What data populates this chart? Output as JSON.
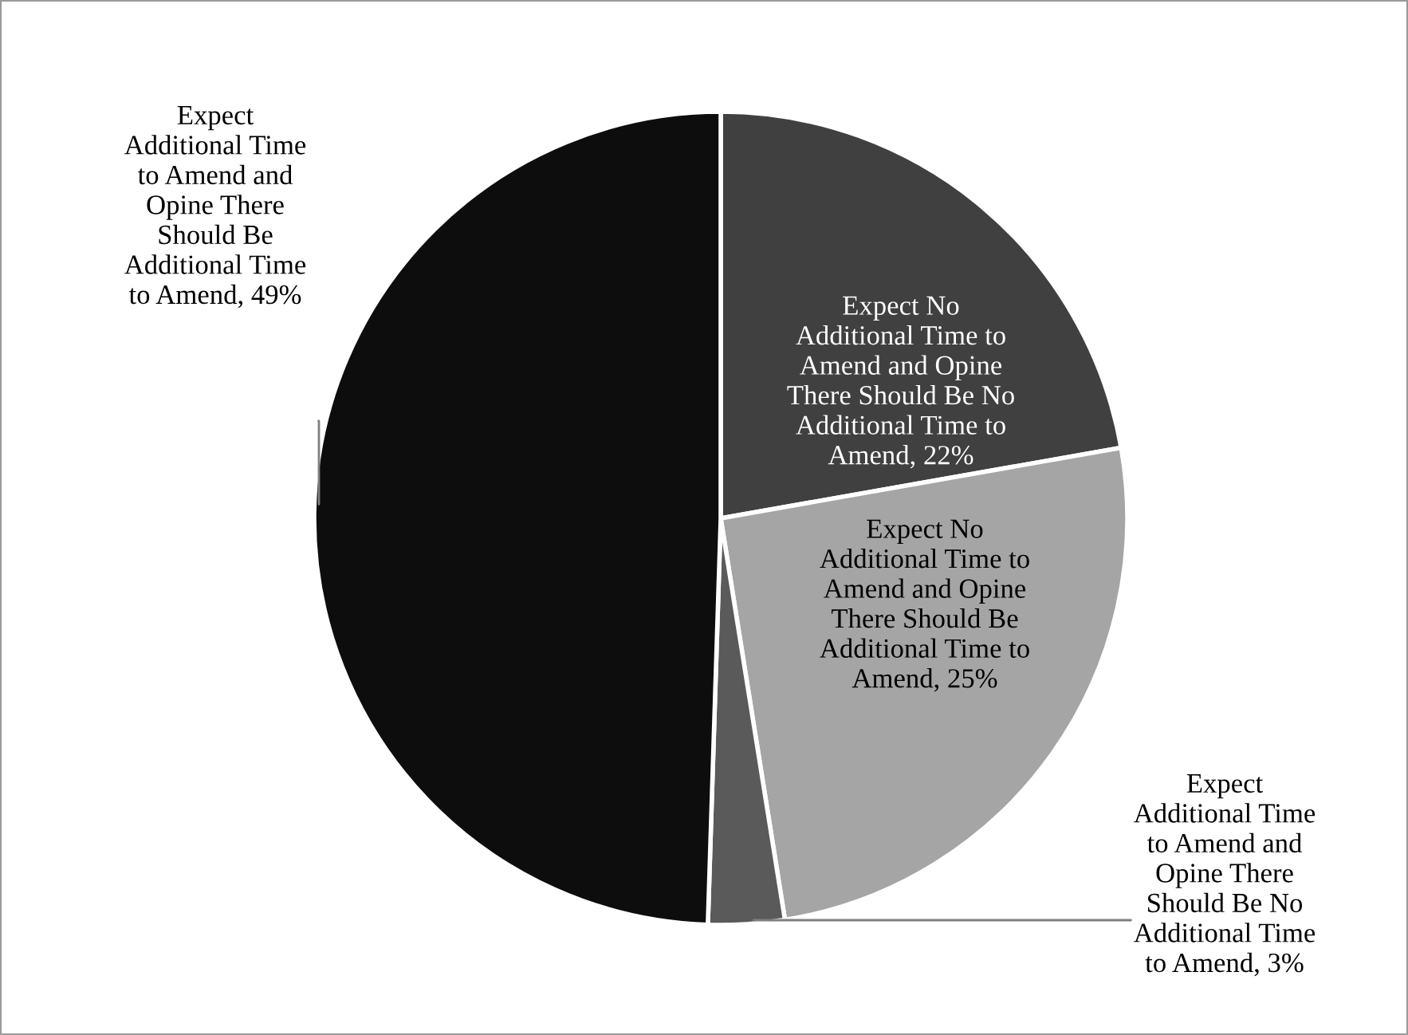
{
  "chart_data": {
    "type": "pie",
    "categories": [
      "Expect No\nAdditional Time to\nAmend and Opine\nThere Should Be No\nAdditional Time to\nAmend",
      "Expect No\nAdditional Time to\nAmend and Opine\nThere Should Be\nAdditional Time to\nAmend",
      "Expect\nAdditional Time\nto Amend and\nOpine There\nShould Be No\nAdditional Time\nto Amend",
      "Expect\nAdditional Time\nto Amend and\nOpine There\nShould Be\nAdditional Time\nto Amend"
    ],
    "values": [
      22,
      25,
      3,
      49
    ],
    "value_labels": [
      "22%",
      "25%",
      "3%",
      "49%"
    ],
    "colors": [
      "#404040",
      "#a5a5a5",
      "#5a5a5a",
      "#0d0d0d"
    ]
  }
}
